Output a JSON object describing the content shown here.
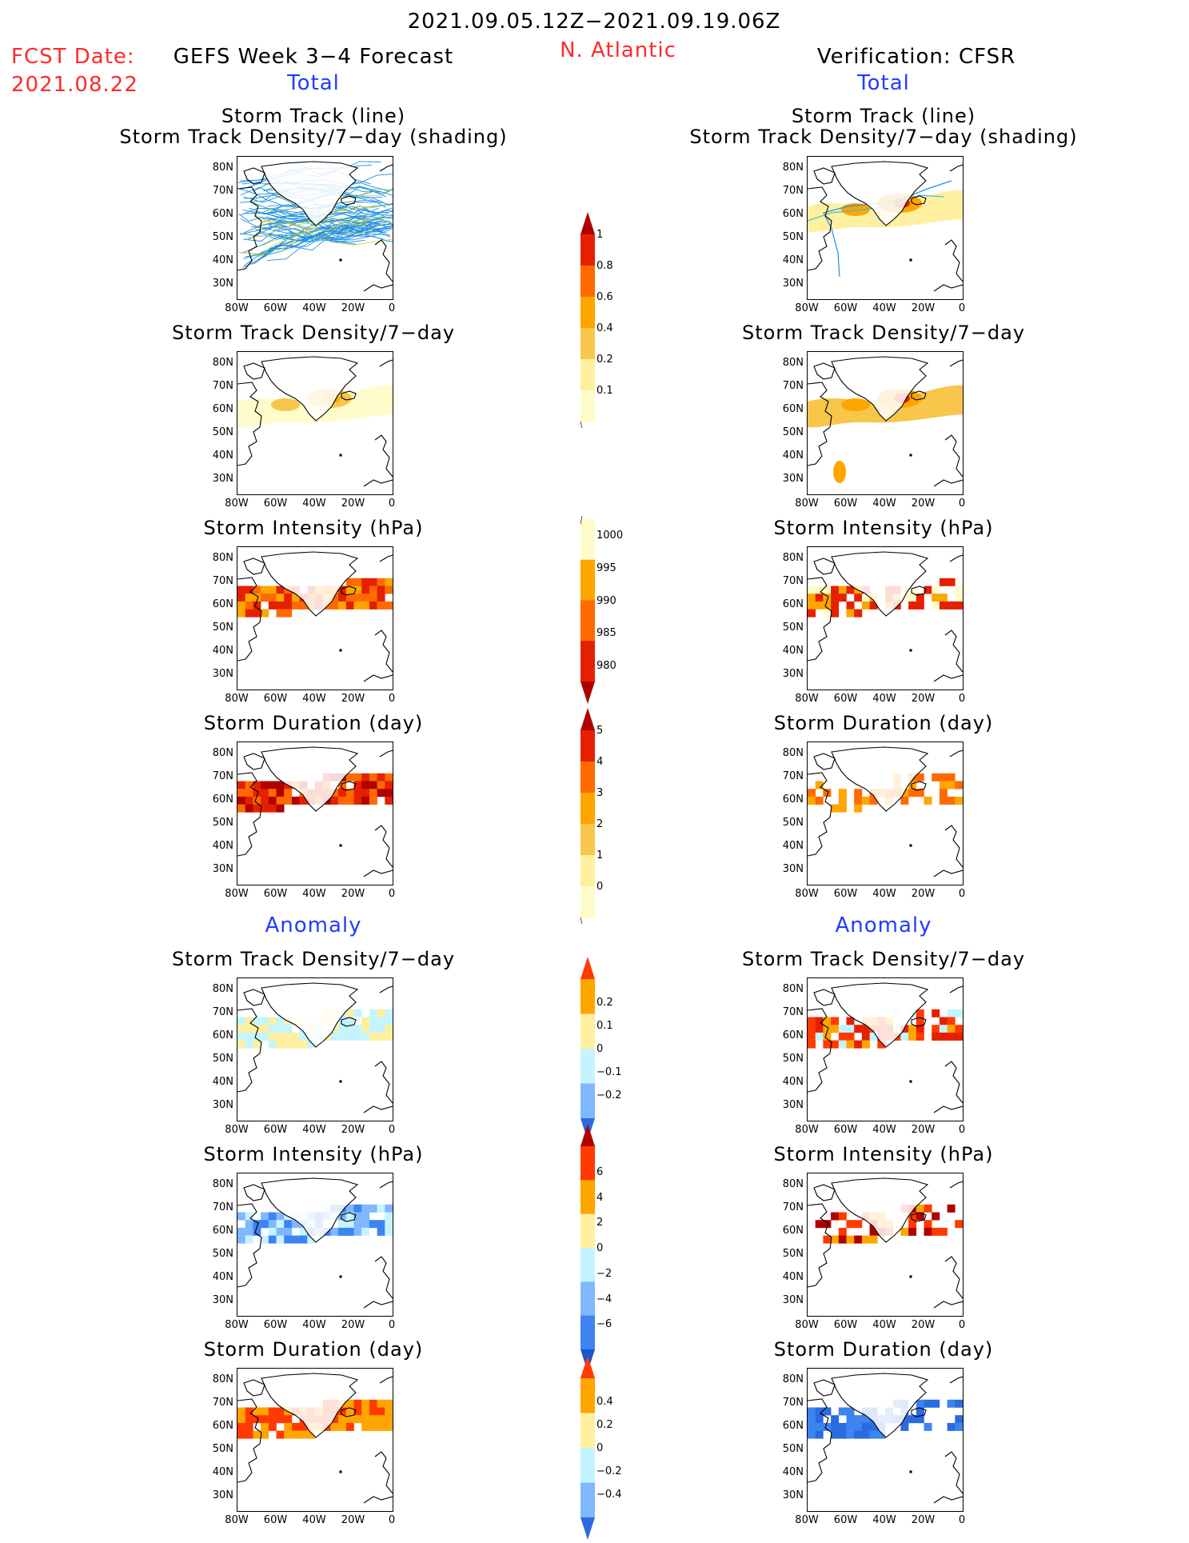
{
  "header": {
    "period": "2021.09.05.12Z−2021.09.19.06Z",
    "fcst_label": "FCST Date:",
    "fcst_date": "2021.08.22",
    "model_title": "GEFS Week 3−4 Forecast",
    "region": "N. Atlantic",
    "verification": "Verification: CFSR"
  },
  "sections": {
    "total": "Total",
    "anomaly": "Anomaly"
  },
  "titles": {
    "track_line": "Storm Track (line)",
    "track_shading": "Storm Track Density/7−day (shading)",
    "density": "Storm Track Density/7−day",
    "intensity": "Storm Intensity (hPa)",
    "duration": "Storm Duration (day)"
  },
  "axes": {
    "lat_labels": [
      "80N",
      "70N",
      "60N",
      "50N",
      "40N",
      "30N"
    ],
    "lon_labels": [
      "80W",
      "60W",
      "40W",
      "20W",
      "0"
    ]
  },
  "colorbars": {
    "density_total": {
      "labels": [
        "1",
        "0.8",
        "0.6",
        "0.4",
        "0.2",
        "0.1"
      ],
      "colors": [
        "#b00000",
        "#e42000",
        "#ff6a00",
        "#ffa500",
        "#f7c64a",
        "#fff0a0",
        "#fffccc"
      ]
    },
    "intensity_total": {
      "labels": [
        "1000",
        "995",
        "990",
        "985",
        "980"
      ],
      "colors": [
        "#fffccc",
        "#ffa500",
        "#ff6a00",
        "#e42000",
        "#b00000"
      ]
    },
    "duration_total": {
      "labels": [
        "5",
        "4",
        "3",
        "2",
        "1",
        "0"
      ],
      "colors": [
        "#b00000",
        "#e42000",
        "#ff6a00",
        "#ffa500",
        "#f7c64a",
        "#fff0a0",
        "#fffccc"
      ]
    },
    "density_anom": {
      "labels": [
        "0.2",
        "0.1",
        "0",
        "−0.1",
        "−0.2"
      ],
      "colors": [
        "#ff3a00",
        "#ffa500",
        "#fff0a0",
        "#c5f4ff",
        "#7fb8ff",
        "#2a6be0"
      ]
    },
    "intensity_anom": {
      "labels": [
        "6",
        "4",
        "2",
        "0",
        "−2",
        "−4",
        "−6"
      ],
      "colors": [
        "#b00000",
        "#ff3a00",
        "#ffa500",
        "#fff0a0",
        "#c5f4ff",
        "#7fb8ff",
        "#3d84f0",
        "#1a55d0"
      ]
    },
    "duration_anom": {
      "labels": [
        "0.4",
        "0.2",
        "0",
        "−0.2",
        "−0.4"
      ],
      "colors": [
        "#ff3a00",
        "#ffa500",
        "#fff0a0",
        "#c5f4ff",
        "#7fb8ff",
        "#2a6be0"
      ]
    }
  }
}
